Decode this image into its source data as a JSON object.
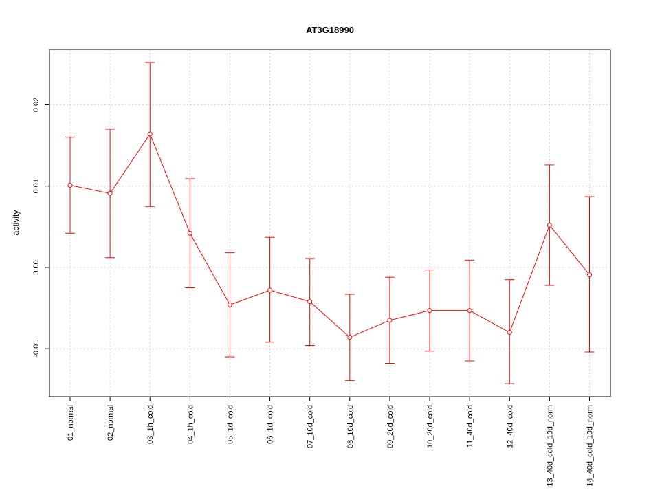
{
  "chart_data": {
    "type": "line",
    "title": "AT3G18990",
    "xlabel": "",
    "ylabel": "activity",
    "categories": [
      "01_normal",
      "02_normal",
      "03_1h_cold",
      "04_1h_cold",
      "05_1d_cold",
      "06_1d_cold",
      "07_10d_cold",
      "08_10d_cold",
      "09_20d_cold",
      "10_20d_cold",
      "11_40d_cold",
      "12_40d_cold",
      "13_40d_cold_10d_norm",
      "14_40d_cold_10d_norm"
    ],
    "series": [
      {
        "values": [
          0.0101,
          0.0091,
          0.0164,
          0.0042,
          -0.0046,
          -0.0028,
          -0.0042,
          -0.0086,
          -0.0065,
          -0.0053,
          -0.0053,
          -0.008,
          0.0052,
          -0.0009
        ],
        "upper": [
          0.016,
          0.017,
          0.0252,
          0.0109,
          0.0018,
          0.0037,
          0.0011,
          -0.0033,
          -0.0012,
          -0.0003,
          0.0009,
          -0.0015,
          0.0126,
          0.0087
        ],
        "lower": [
          0.0042,
          0.0012,
          0.0075,
          -0.0025,
          -0.011,
          -0.0092,
          -0.0096,
          -0.0139,
          -0.0118,
          -0.0103,
          -0.0115,
          -0.0143,
          -0.0022,
          -0.0104
        ],
        "color": "#ff0000"
      }
    ],
    "y_ticks": [
      -0.01,
      0.0,
      0.01,
      0.02
    ],
    "y_tick_labels": [
      "-0.01",
      "0.00",
      "0.01",
      "0.02"
    ],
    "ylim": [
      -0.0159,
      0.0268
    ],
    "grid": true,
    "grid_color": "#d3d3d3"
  }
}
